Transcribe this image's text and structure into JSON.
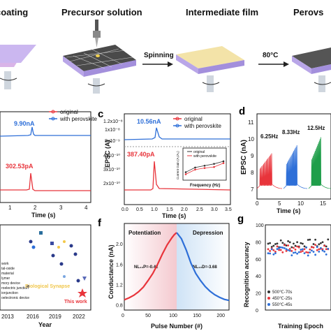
{
  "top": {
    "steps": [
      "coating",
      "Precursor solution",
      "Intermediate film",
      "Perovs"
    ],
    "arrows": [
      "Spinning",
      "80°C"
    ]
  },
  "panel_b": {
    "yaxis_label": "",
    "xlabel": "Time (s)",
    "xticks": [
      "1",
      "2",
      "3",
      "4"
    ],
    "legend": [
      "original",
      "with perovskite"
    ],
    "annot_blue": "9.90nA",
    "annot_red": "302.53pA"
  },
  "panel_c": {
    "label": "c",
    "ylabel": "EPSC (A)",
    "xlabel": "Time (s)",
    "yticks": [
      "1.2x10⁻⁸",
      "1x10⁻⁸",
      "8x10⁻⁹",
      "4x10⁻¹⁰",
      "3x10⁻¹⁰",
      "2x10⁻¹⁰"
    ],
    "xticks": [
      "0.0",
      "0.5",
      "1.0",
      "1.5",
      "2.0",
      "2.5",
      "3.0",
      "3.5"
    ],
    "legend": [
      "original",
      "with perovskite"
    ],
    "annot_blue": "10.56nA",
    "annot_red": "387.40pA",
    "inset": {
      "ylabel": "Current Gain (A₁/A₀)",
      "xlabel": "Frequency (Hz)",
      "legend": [
        "original",
        "with perovskite"
      ],
      "xticks": [
        "5",
        "10",
        "15",
        "20",
        "25"
      ],
      "yticks": [
        "1.2",
        "1.4",
        "1.6"
      ]
    }
  },
  "panel_d": {
    "label": "d",
    "ylabel": "EPSC (nA)",
    "xlabel": "Time (s)",
    "yticks": [
      "7",
      "8",
      "9",
      "10",
      "11"
    ],
    "xticks": [
      "0",
      "5",
      "10",
      "15"
    ],
    "freq_labels": [
      "6.25Hz",
      "8.33Hz",
      "12.5Hz"
    ],
    "colors": [
      "#e8343b",
      "#2e6fd8",
      "#1f9e4a"
    ]
  },
  "panel_e": {
    "xlabel": "Year",
    "xticks": [
      "2013",
      "2016",
      "2019",
      "2022"
    ],
    "legend": [
      "work",
      "tal-oxide",
      "material",
      "lymer",
      "mory device",
      "roelectric junction",
      "ionjunction",
      "oelectronic device"
    ],
    "center_label": "Biological Synapse",
    "this_work": "This work"
  },
  "panel_f": {
    "label": "f",
    "ylabel": "Conductance (nA)",
    "xlabel": "Pulse Number (#)",
    "yticks": [
      "0.8",
      "1.2",
      "1.6",
      "2.0"
    ],
    "xticks": [
      "0",
      "50",
      "100",
      "150",
      "200"
    ],
    "potentiation": "Potentiation",
    "depression": "Depression",
    "nl_p": "NL₁₀P=-0.42",
    "nl_d": "NL₁₀D=-3.68"
  },
  "panel_g": {
    "label": "g",
    "ylabel": "Recognition accuracy",
    "xlabel": "Training Epoch",
    "yticks": [
      "0",
      "20",
      "40",
      "60",
      "80",
      "100"
    ],
    "legend": [
      "500℃-70s",
      "450℃-25s",
      "550℃-45s"
    ]
  },
  "chart_data": [
    {
      "type": "line",
      "panel": "c-inset",
      "xlabel": "Frequency (Hz)",
      "ylabel": "Current Gain (A₁/A₀)",
      "x": [
        5,
        10,
        15,
        20,
        25
      ],
      "series": [
        {
          "name": "original",
          "values": [
            1.12,
            1.3,
            1.36,
            1.4,
            1.55
          ],
          "color": "#e8343b"
        },
        {
          "name": "with perovskite",
          "values": [
            1.2,
            1.38,
            1.45,
            1.52,
            1.62
          ],
          "color": "#333333"
        }
      ],
      "ylim": [
        1.0,
        1.7
      ]
    },
    {
      "type": "line",
      "panel": "f",
      "xlabel": "Pulse Number (#)",
      "ylabel": "Conductance (nA)",
      "xlim": [
        0,
        220
      ],
      "ylim": [
        0.7,
        2.4
      ],
      "series": [
        {
          "name": "Potentiation",
          "color": "#e8343b",
          "x": [
            0,
            10,
            20,
            30,
            40,
            50,
            60,
            70,
            80,
            90,
            100,
            105,
            110
          ],
          "values": [
            0.9,
            0.94,
            0.99,
            1.06,
            1.15,
            1.28,
            1.42,
            1.6,
            1.8,
            1.98,
            2.12,
            2.18,
            2.22
          ]
        },
        {
          "name": "Depression",
          "color": "#2e6fd8",
          "x": [
            110,
            120,
            130,
            140,
            150,
            160,
            170,
            180,
            190,
            200,
            210,
            220
          ],
          "values": [
            2.22,
            2.1,
            1.88,
            1.62,
            1.42,
            1.28,
            1.16,
            1.07,
            1.0,
            0.95,
            0.91,
            0.89
          ]
        }
      ]
    },
    {
      "type": "scatter",
      "panel": "g",
      "xlabel": "Training Epoch",
      "ylabel": "Recognition accuracy",
      "ylim": [
        0,
        100
      ],
      "series": [
        {
          "name": "500℃-70s",
          "color": "#333333",
          "mean": 78
        },
        {
          "name": "450℃-25s",
          "color": "#e8343b",
          "mean": 72
        },
        {
          "name": "550℃-45s",
          "color": "#2e6fd8",
          "mean": 69
        }
      ]
    }
  ]
}
